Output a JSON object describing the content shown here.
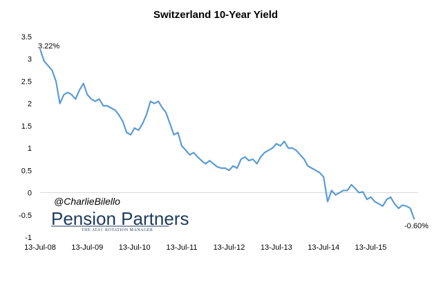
{
  "chart_data": {
    "type": "line",
    "title": "Switzerland 10-Year Yield",
    "xlabel": "",
    "ylabel": "",
    "x_ticks": [
      "13-Jul-08",
      "13-Jul-09",
      "13-Jul-10",
      "13-Jul-11",
      "13-Jul-12",
      "13-Jul-13",
      "13-Jul-14",
      "13-Jul-15"
    ],
    "y_ticks": [
      "3.5",
      "3",
      "2.5",
      "2",
      "1.5",
      "1",
      "0.5",
      "0",
      "-0.5",
      "-1"
    ],
    "xlim": [
      "2008-07-13",
      "2016-07-13"
    ],
    "ylim": [
      -1,
      3.5
    ],
    "grid": false,
    "legend": "none",
    "line_color": "#5b9bd5",
    "series": [
      {
        "x": [
          "2008-07-13",
          "2008-08-13",
          "2008-09-13",
          "2008-10-13",
          "2008-11-13",
          "2008-12-13",
          "2009-01-13",
          "2009-02-13",
          "2009-03-13",
          "2009-04-13",
          "2009-05-13",
          "2009-06-13",
          "2009-07-13",
          "2009-08-13",
          "2009-09-13",
          "2009-10-13",
          "2009-11-13",
          "2009-12-13",
          "2010-01-13",
          "2010-02-13",
          "2010-03-13",
          "2010-04-13",
          "2010-05-13",
          "2010-06-13",
          "2010-07-13",
          "2010-08-13",
          "2010-09-13",
          "2010-10-13",
          "2010-11-13",
          "2010-12-13",
          "2011-01-13",
          "2011-02-13",
          "2011-03-13",
          "2011-04-13",
          "2011-05-13",
          "2011-06-13",
          "2011-07-13",
          "2011-08-13",
          "2011-09-13",
          "2011-10-13",
          "2011-11-13",
          "2011-12-13",
          "2012-01-13",
          "2012-02-13",
          "2012-03-13",
          "2012-04-13",
          "2012-05-13",
          "2012-06-13",
          "2012-07-13",
          "2012-08-13",
          "2012-09-13",
          "2012-10-13",
          "2012-11-13",
          "2012-12-13",
          "2013-01-13",
          "2013-02-13",
          "2013-03-13",
          "2013-04-13",
          "2013-05-13",
          "2013-06-13",
          "2013-07-13",
          "2013-08-13",
          "2013-09-13",
          "2013-10-13",
          "2013-11-13",
          "2013-12-13",
          "2014-01-13",
          "2014-02-13",
          "2014-03-13",
          "2014-04-13",
          "2014-05-13",
          "2014-06-13",
          "2014-07-13",
          "2014-08-13",
          "2014-09-13",
          "2014-10-13",
          "2014-11-13",
          "2014-12-13",
          "2015-01-13",
          "2015-02-13",
          "2015-03-13",
          "2015-04-13",
          "2015-05-13",
          "2015-06-13",
          "2015-07-13",
          "2015-08-13",
          "2015-09-13",
          "2015-10-13",
          "2015-11-13",
          "2015-12-13",
          "2016-01-13",
          "2016-02-13",
          "2016-03-13",
          "2016-04-13",
          "2016-05-13",
          "2016-06-13"
        ],
        "values": [
          3.22,
          2.95,
          2.85,
          2.75,
          2.5,
          2.0,
          2.2,
          2.25,
          2.2,
          2.1,
          2.3,
          2.45,
          2.2,
          2.1,
          2.05,
          2.1,
          1.95,
          1.95,
          1.9,
          1.85,
          1.75,
          1.6,
          1.35,
          1.3,
          1.45,
          1.4,
          1.55,
          1.75,
          2.05,
          2.0,
          2.05,
          1.9,
          1.8,
          1.55,
          1.3,
          1.35,
          1.05,
          0.95,
          0.85,
          0.9,
          0.8,
          0.72,
          0.65,
          0.72,
          0.65,
          0.58,
          0.55,
          0.55,
          0.5,
          0.6,
          0.55,
          0.75,
          0.8,
          0.72,
          0.75,
          0.65,
          0.8,
          0.9,
          0.95,
          1.0,
          1.1,
          1.05,
          1.15,
          1.0,
          1.0,
          0.95,
          0.85,
          0.75,
          0.6,
          0.55,
          0.5,
          0.45,
          0.35,
          -0.2,
          0.05,
          -0.05,
          0.0,
          0.05,
          0.05,
          0.18,
          0.1,
          0.0,
          0.02,
          -0.15,
          -0.1,
          -0.2,
          -0.25,
          -0.3,
          -0.15,
          -0.1,
          -0.25,
          -0.35,
          -0.28,
          -0.3,
          -0.35,
          -0.6
        ]
      }
    ],
    "annotations": {
      "start_label": "3.22%",
      "end_label": "-0.60%"
    }
  },
  "watermark": {
    "handle": "@CharlieBilello",
    "logo_text": "Pension Partners",
    "logo_tagline": "THE ATAC ROTATION MANAGER"
  }
}
